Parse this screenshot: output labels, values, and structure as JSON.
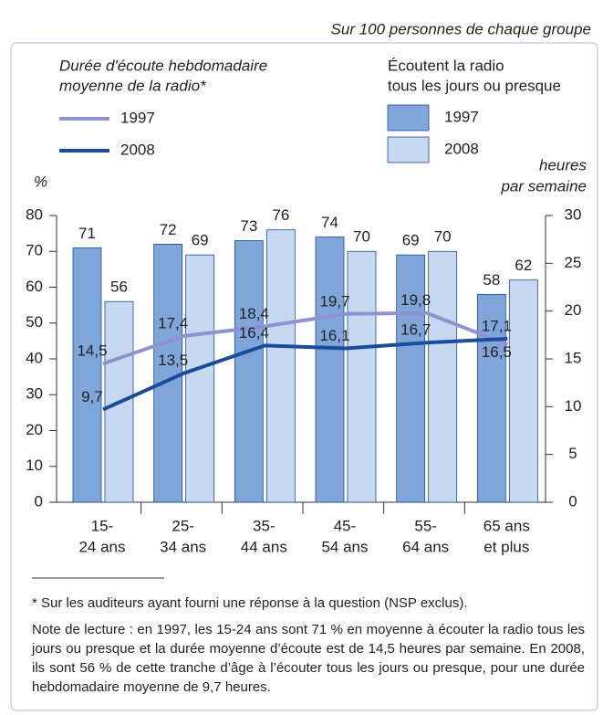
{
  "chart_data": {
    "type": "bar_line",
    "subtitle": "Sur 100 personnes de chaque groupe",
    "legend_line_title": [
      "Durée d'écoute hebdomadaire",
      "moyenne de la radio*"
    ],
    "legend_bar_title": [
      "Écoutent la radio",
      "tous les jours ou presque"
    ],
    "ylabel": "%",
    "y2label": [
      "heures",
      "par semaine"
    ],
    "categories": [
      [
        "15-",
        "24 ans"
      ],
      [
        "25-",
        "34 ans"
      ],
      [
        "35-",
        "44 ans"
      ],
      [
        "45-",
        "54 ans"
      ],
      [
        "55-",
        "64 ans"
      ],
      [
        "65 ans",
        "et plus"
      ]
    ],
    "series": [
      {
        "name": "1997",
        "type": "bar",
        "color": "#7fa5d9",
        "values": [
          71,
          72,
          73,
          74,
          69,
          58
        ]
      },
      {
        "name": "2008",
        "type": "bar",
        "color": "#c6d9f1",
        "values": [
          56,
          69,
          76,
          70,
          70,
          62
        ]
      },
      {
        "name": "1997",
        "type": "line",
        "axis": "y2",
        "color": "#8e93cf",
        "values": [
          14.5,
          17.4,
          18.4,
          19.7,
          19.8,
          16.5
        ],
        "value_labels": [
          "14,5",
          "17,4",
          "18,4",
          "19,7",
          "19,8",
          "16,5"
        ]
      },
      {
        "name": "2008",
        "type": "line",
        "axis": "y2",
        "color": "#1a4c9c",
        "values": [
          9.7,
          13.5,
          16.4,
          16.1,
          16.7,
          17.1
        ],
        "value_labels": [
          "9,7",
          "13,5",
          "16,4",
          "16,1",
          "16,7",
          "17,1"
        ]
      }
    ],
    "ylim": [
      0,
      80
    ],
    "yticks": [
      0,
      10,
      20,
      30,
      40,
      50,
      60,
      70,
      80
    ],
    "y2lim": [
      0,
      30
    ],
    "y2ticks": [
      0,
      5,
      10,
      15,
      20,
      25,
      30
    ],
    "grid": false
  },
  "notes": {
    "footnote": "* Sur les auditeurs ayant fourni une réponse à la question (NSP exclus).",
    "reading": "Note de lecture : en 1997, les 15-24 ans sont 71 % en moyenne à écouter la radio tous les jours ou presque et la durée moyenne d’écoute est de 14,5 heures par semaine. En 2008, ils sont 56 % de cette tranche d’âge à l’écouter tous les jours ou presque, pour une durée hebdomadaire moyenne de 9,7 heures."
  }
}
